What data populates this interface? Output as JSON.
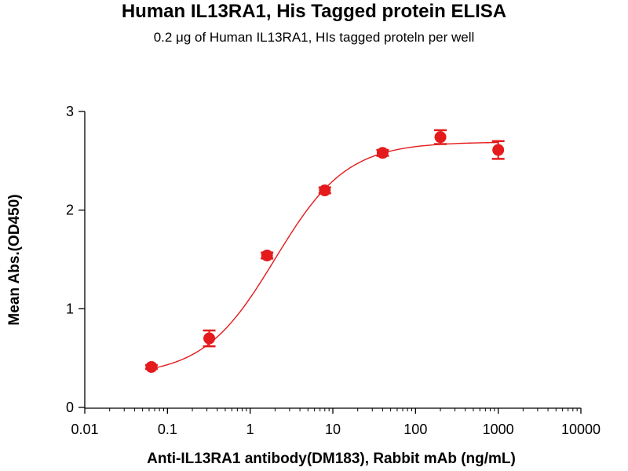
{
  "chart_data": {
    "type": "scatter",
    "title": "Human IL13RA1, His Tagged protein ELISA",
    "subtitle": "0.2 μg of Human IL13RA1, HIs tagged proteln per well",
    "xlabel": "Anti-IL13RA1 antibody(DM183), Rabbit mAb (ng/mL)",
    "ylabel": "Mean Abs.(OD450)",
    "x_scale": "log",
    "xlim": [
      0.01,
      10000
    ],
    "ylim": [
      0,
      3
    ],
    "x_ticks": [
      0.01,
      0.1,
      1,
      10,
      100,
      1000,
      10000
    ],
    "x_tick_labels": [
      "0.01",
      "0.1",
      "1",
      "10",
      "100",
      "1000",
      "10000"
    ],
    "y_ticks": [
      0,
      1,
      2,
      3
    ],
    "y_tick_labels": [
      "0",
      "1",
      "2",
      "3"
    ],
    "grid": false,
    "series": [
      {
        "color": "#e41a1c",
        "points": [
          {
            "x": 0.064,
            "y": 0.41,
            "err": 0.02
          },
          {
            "x": 0.32,
            "y": 0.7,
            "err": 0.08
          },
          {
            "x": 1.6,
            "y": 1.54,
            "err": 0.03
          },
          {
            "x": 8,
            "y": 2.2,
            "err": 0.03
          },
          {
            "x": 40,
            "y": 2.58,
            "err": 0.03
          },
          {
            "x": 200,
            "y": 2.74,
            "err": 0.07
          },
          {
            "x": 1000,
            "y": 2.61,
            "err": 0.09
          }
        ],
        "fit": {
          "type": "4PL",
          "bottom": 0.32,
          "top": 2.69,
          "ec50": 2.0,
          "hill": 1.0
        }
      }
    ]
  }
}
